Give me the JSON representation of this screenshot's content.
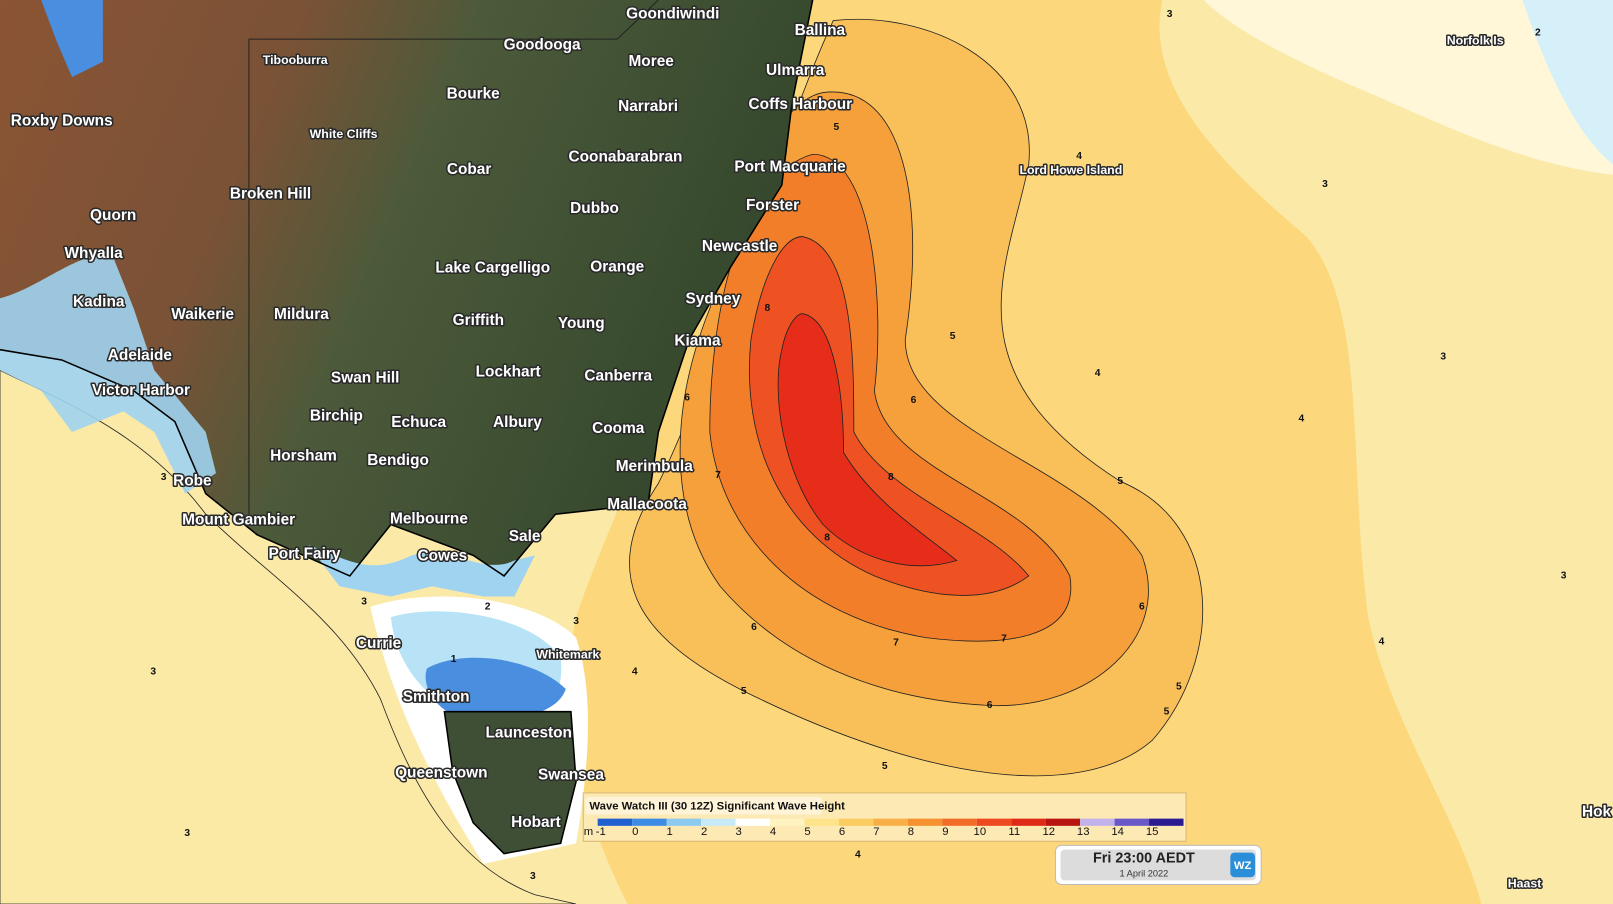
{
  "places": [
    "Goondiwindi",
    "Goodooga",
    "Moree",
    "Tibooburra",
    "Ballina",
    "Ulmarra",
    "Bourke",
    "Narrabri",
    "Coffs Harbour",
    "Roxby Downs",
    "White Cliffs",
    "Coonabarabran",
    "Port Macquarie",
    "Cobar",
    "Lord Howe Island",
    "Broken Hill",
    "Dubbo",
    "Forster",
    "Quorn",
    "Newcastle",
    "Whyalla",
    "Lake Cargelligo",
    "Orange",
    "Sydney",
    "Kadina",
    "Waikerie",
    "Mildura",
    "Griffith",
    "Young",
    "Kiama",
    "Adelaide",
    "Lockhart",
    "Canberra",
    "Swan Hill",
    "Victor Harbor",
    "Birchip",
    "Echuca",
    "Albury",
    "Cooma",
    "Horsham",
    "Bendigo",
    "Merimbula",
    "Robe",
    "Mallacoota",
    "Mount Gambier",
    "Melbourne",
    "Sale",
    "Port Fairy",
    "Cowes",
    "Currie",
    "Whitemark",
    "Smithton",
    "Launceston",
    "Queenstown",
    "Swansea",
    "Hobart",
    "Norfolk Is",
    "Haast",
    "Hok"
  ],
  "contour_labels": [
    3,
    2,
    4,
    3,
    5,
    5,
    4,
    3,
    4,
    8,
    6,
    7,
    8,
    8,
    5,
    6,
    7,
    7,
    6,
    6,
    5,
    5,
    5,
    5,
    4,
    3,
    4,
    4,
    3,
    3,
    3,
    2,
    3,
    3,
    3,
    6,
    1
  ],
  "legend": {
    "title": "Wave Watch III (30 12Z) Significant Wave Height",
    "unit": "m",
    "ticks": [
      -1,
      0,
      1,
      2,
      3,
      4,
      5,
      6,
      7,
      8,
      9,
      10,
      11,
      12,
      13,
      14,
      15
    ],
    "colors": [
      "#1f5fd0",
      "#3c8ce6",
      "#8ccaf0",
      "#c8eaf8",
      "#ffffff",
      "#fff3c0",
      "#fde48a",
      "#fbcc62",
      "#f8af48",
      "#f5922f",
      "#f26d28",
      "#ee4a22",
      "#e02a18",
      "#b81410",
      "#c2b2ec",
      "#6a58c8",
      "#2a1c90"
    ]
  },
  "timestamp": {
    "time": "Fri 23:00 AEDT",
    "date": "1 April 2022"
  },
  "logo": "WZ"
}
